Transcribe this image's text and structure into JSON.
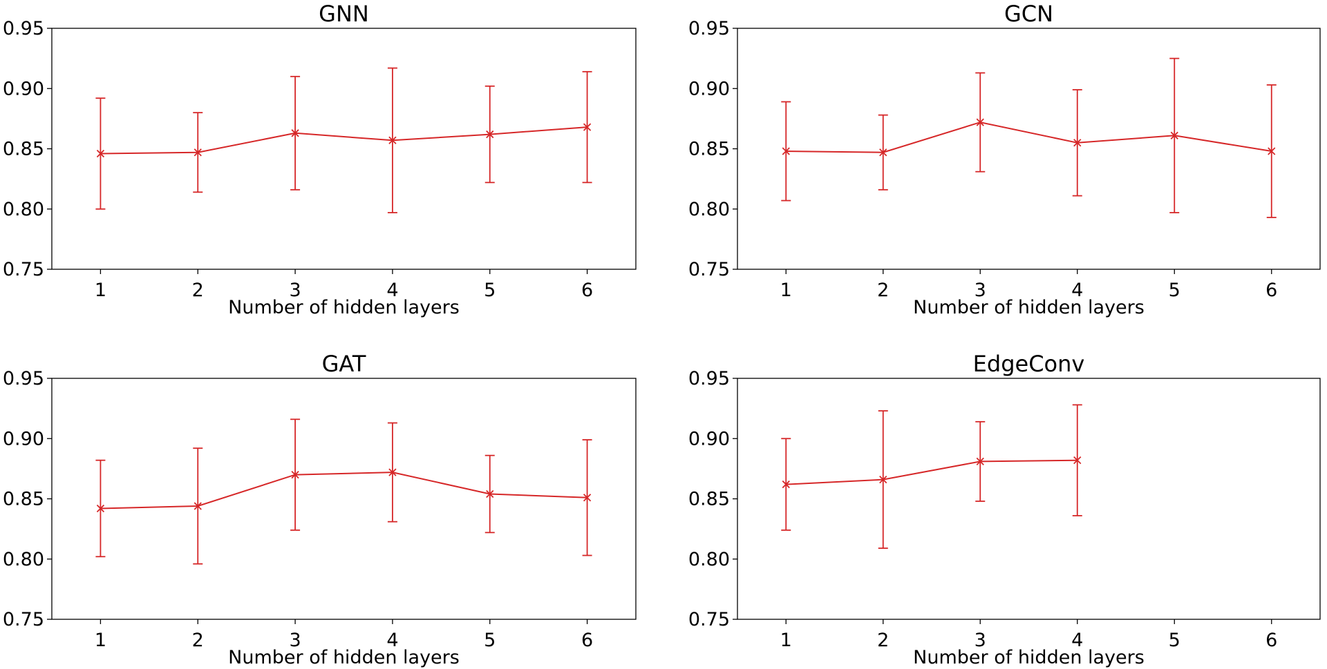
{
  "figure": {
    "line_color": "#d62728",
    "marker": "x",
    "panels": 4
  },
  "chart_data": [
    {
      "type": "line",
      "title": "GNN",
      "xlabel": "Number of hidden layers",
      "ylabel": "",
      "x": [
        1,
        2,
        3,
        4,
        5,
        6
      ],
      "y": [
        0.846,
        0.847,
        0.863,
        0.857,
        0.862,
        0.868
      ],
      "yerr": [
        0.046,
        0.033,
        0.047,
        0.06,
        0.04,
        0.046
      ],
      "xlim": [
        0.5,
        6.5
      ],
      "ylim": [
        0.75,
        0.95
      ],
      "xticks": [
        "1",
        "2",
        "3",
        "4",
        "5",
        "6"
      ],
      "yticks": [
        "0.75",
        "0.80",
        "0.85",
        "0.90",
        "0.95"
      ],
      "grid": false
    },
    {
      "type": "line",
      "title": "GCN",
      "xlabel": "Number of hidden layers",
      "ylabel": "",
      "x": [
        1,
        2,
        3,
        4,
        5,
        6
      ],
      "y": [
        0.848,
        0.847,
        0.872,
        0.855,
        0.861,
        0.848
      ],
      "yerr": [
        0.041,
        0.031,
        0.041,
        0.044,
        0.064,
        0.055
      ],
      "xlim": [
        0.5,
        6.5
      ],
      "ylim": [
        0.75,
        0.95
      ],
      "xticks": [
        "1",
        "2",
        "3",
        "4",
        "5",
        "6"
      ],
      "yticks": [
        "0.75",
        "0.80",
        "0.85",
        "0.90",
        "0.95"
      ],
      "grid": false
    },
    {
      "type": "line",
      "title": "GAT",
      "xlabel": "Number of hidden layers",
      "ylabel": "",
      "x": [
        1,
        2,
        3,
        4,
        5,
        6
      ],
      "y": [
        0.842,
        0.844,
        0.87,
        0.872,
        0.854,
        0.851
      ],
      "yerr": [
        0.04,
        0.048,
        0.046,
        0.041,
        0.032,
        0.048
      ],
      "xlim": [
        0.5,
        6.5
      ],
      "ylim": [
        0.75,
        0.95
      ],
      "xticks": [
        "1",
        "2",
        "3",
        "4",
        "5",
        "6"
      ],
      "yticks": [
        "0.75",
        "0.80",
        "0.85",
        "0.90",
        "0.95"
      ],
      "grid": false
    },
    {
      "type": "line",
      "title": "EdgeConv",
      "xlabel": "Number of hidden layers",
      "ylabel": "",
      "x": [
        1,
        2,
        3,
        4
      ],
      "y": [
        0.862,
        0.866,
        0.881,
        0.882
      ],
      "yerr": [
        0.038,
        0.057,
        0.033,
        0.046
      ],
      "xlim": [
        0.5,
        6.5
      ],
      "ylim": [
        0.75,
        0.95
      ],
      "xticks": [
        "1",
        "2",
        "3",
        "4",
        "5",
        "6"
      ],
      "yticks": [
        "0.75",
        "0.80",
        "0.85",
        "0.90",
        "0.95"
      ],
      "grid": false
    }
  ]
}
